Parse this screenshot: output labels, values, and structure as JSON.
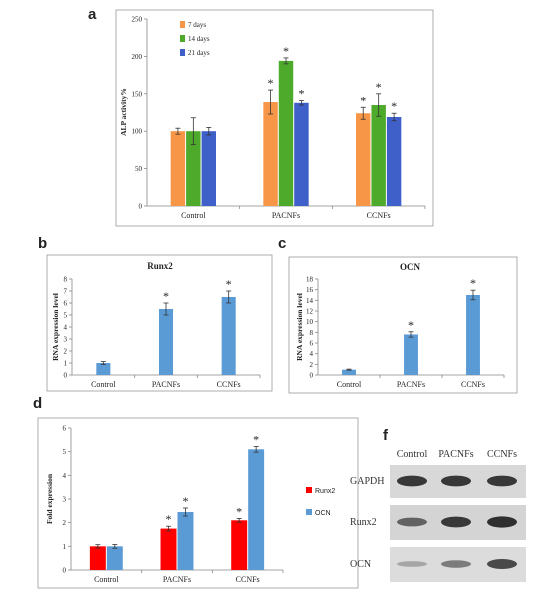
{
  "panel_letters": {
    "a": "a",
    "b": "b",
    "c": "c",
    "d": "d",
    "f": "f"
  },
  "chart_data": [
    {
      "id": "a",
      "type": "bar",
      "title": "",
      "xlabel": "",
      "ylabel": "ALP activity%",
      "ylim": [
        0,
        250
      ],
      "yticks": [
        0,
        50,
        100,
        150,
        200,
        250
      ],
      "categories": [
        "Control",
        "PACNFs",
        "CCNFs"
      ],
      "legend_position": "top-left",
      "grid": false,
      "series": [
        {
          "name": "7 days",
          "color": "#F79646",
          "values": [
            100,
            139,
            124
          ],
          "errors": [
            4,
            16,
            8
          ]
        },
        {
          "name": "14 days",
          "color": "#4EAA2B",
          "values": [
            100,
            194,
            135
          ],
          "errors": [
            18,
            4,
            15
          ]
        },
        {
          "name": "21 days",
          "color": "#3F5FC9",
          "values": [
            100,
            138,
            119
          ],
          "errors": [
            5,
            3,
            5
          ]
        }
      ],
      "annotations": [
        {
          "category": 1,
          "series": 0,
          "text": "*"
        },
        {
          "category": 1,
          "series": 1,
          "text": "*"
        },
        {
          "category": 1,
          "series": 2,
          "text": "*"
        },
        {
          "category": 2,
          "series": 0,
          "text": "*"
        },
        {
          "category": 2,
          "series": 1,
          "text": "*"
        },
        {
          "category": 2,
          "series": 2,
          "text": "*"
        }
      ]
    },
    {
      "id": "b",
      "type": "bar",
      "title": "Runx2",
      "xlabel": "",
      "ylabel": "RNA expression level",
      "ylim": [
        0,
        8
      ],
      "yticks": [
        0,
        1,
        2,
        3,
        4,
        5,
        6,
        7,
        8
      ],
      "categories": [
        "Control",
        "PACNFs",
        "CCNFs"
      ],
      "grid": false,
      "series": [
        {
          "name": "",
          "color": "#5B9BD5",
          "values": [
            1.0,
            5.5,
            6.5
          ],
          "errors": [
            0.12,
            0.5,
            0.5
          ]
        }
      ],
      "annotations": [
        {
          "category": 1,
          "series": 0,
          "text": "*"
        },
        {
          "category": 2,
          "series": 0,
          "text": "*"
        }
      ]
    },
    {
      "id": "c",
      "type": "bar",
      "title": "OCN",
      "xlabel": "",
      "ylabel": "RNA expression level",
      "ylim": [
        0,
        18
      ],
      "yticks": [
        0,
        2,
        4,
        6,
        8,
        10,
        12,
        14,
        16,
        18
      ],
      "categories": [
        "Control",
        "PACNFs",
        "CCNFs"
      ],
      "grid": false,
      "series": [
        {
          "name": "",
          "color": "#5B9BD5",
          "values": [
            1.0,
            7.6,
            15.0
          ],
          "errors": [
            0.1,
            0.5,
            0.9
          ]
        }
      ],
      "annotations": [
        {
          "category": 1,
          "series": 0,
          "text": "*"
        },
        {
          "category": 2,
          "series": 0,
          "text": "*"
        }
      ]
    },
    {
      "id": "d",
      "type": "bar",
      "title": "",
      "xlabel": "",
      "ylabel": "Fold expression",
      "ylim": [
        0,
        6
      ],
      "yticks": [
        0,
        1,
        2,
        3,
        4,
        5,
        6
      ],
      "categories": [
        "Control",
        "PACNFs",
        "CCNFs"
      ],
      "legend_position": "right",
      "grid": false,
      "series": [
        {
          "name": "Runx2",
          "color": "#FF0000",
          "values": [
            1.0,
            1.75,
            2.1
          ],
          "errors": [
            0.07,
            0.1,
            0.08
          ]
        },
        {
          "name": "OCN",
          "color": "#5B9BD5",
          "values": [
            1.0,
            2.45,
            5.1
          ],
          "errors": [
            0.08,
            0.17,
            0.12
          ]
        }
      ],
      "annotations": [
        {
          "category": 1,
          "series": 0,
          "text": "*"
        },
        {
          "category": 1,
          "series": 1,
          "text": "*"
        },
        {
          "category": 2,
          "series": 0,
          "text": "*"
        },
        {
          "category": 2,
          "series": 1,
          "text": "*"
        }
      ]
    }
  ],
  "western_blot": {
    "columns": [
      "Control",
      "PACNFs",
      "CCNFs"
    ],
    "rows": [
      {
        "label": "GAPDH",
        "intensity": [
          0.85,
          0.85,
          0.85
        ]
      },
      {
        "label": "Runx2",
        "intensity": [
          0.6,
          0.85,
          0.9
        ]
      },
      {
        "label": "OCN",
        "intensity": [
          0.2,
          0.45,
          0.75
        ]
      }
    ]
  }
}
